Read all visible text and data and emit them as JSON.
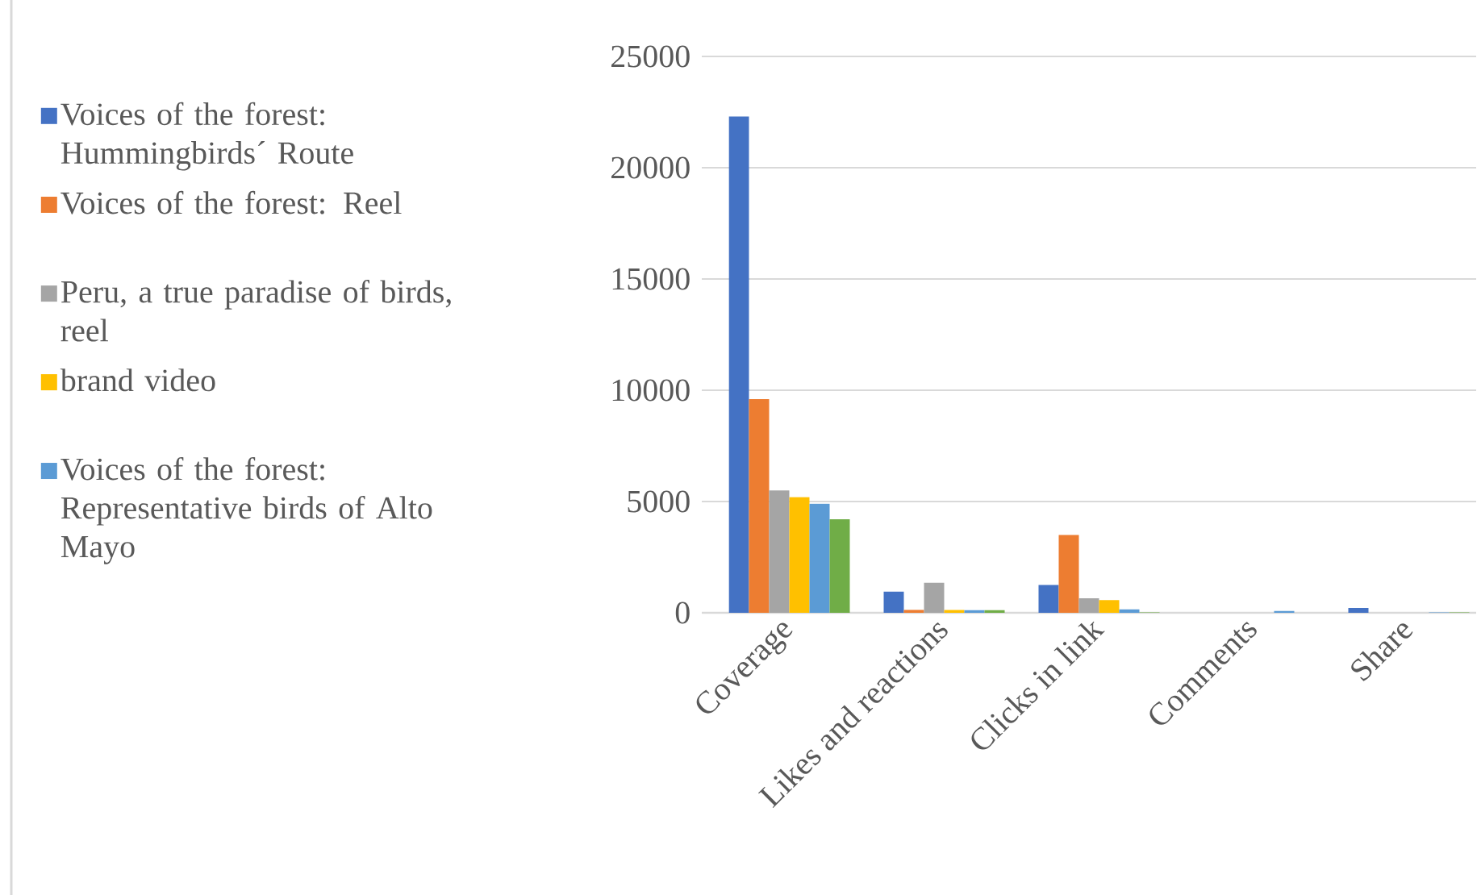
{
  "chart_data": {
    "type": "bar",
    "categories": [
      "Coverage",
      "Likes and reactions",
      "Clicks in link",
      "Comments",
      "Share"
    ],
    "series": [
      {
        "name": "Voices of the forest: Hummingbirds´ Route",
        "color": "#4472c4",
        "values": [
          22300,
          950,
          1250,
          0,
          220
        ]
      },
      {
        "name": "Voices of the forest: Reel",
        "color": "#ed7d31",
        "values": [
          9600,
          130,
          3500,
          0,
          0
        ]
      },
      {
        "name": "Peru, a true paradise of birds, reel",
        "color": "#a5a5a5",
        "values": [
          5500,
          1350,
          650,
          0,
          0
        ]
      },
      {
        "name": "brand video",
        "color": "#ffc000",
        "values": [
          5200,
          130,
          570,
          0,
          0
        ]
      },
      {
        "name": "Voices of the forest: Representative birds of Alto Mayo",
        "color": "#5b9bd5",
        "values": [
          4900,
          120,
          150,
          80,
          20
        ]
      },
      {
        "color": "#70ad47",
        "values": [
          4200,
          120,
          20,
          0,
          20
        ]
      }
    ],
    "ylim": [
      0,
      25000
    ],
    "yticks": [
      0,
      5000,
      10000,
      15000,
      20000,
      25000
    ],
    "grid": "y",
    "legend": "left"
  }
}
